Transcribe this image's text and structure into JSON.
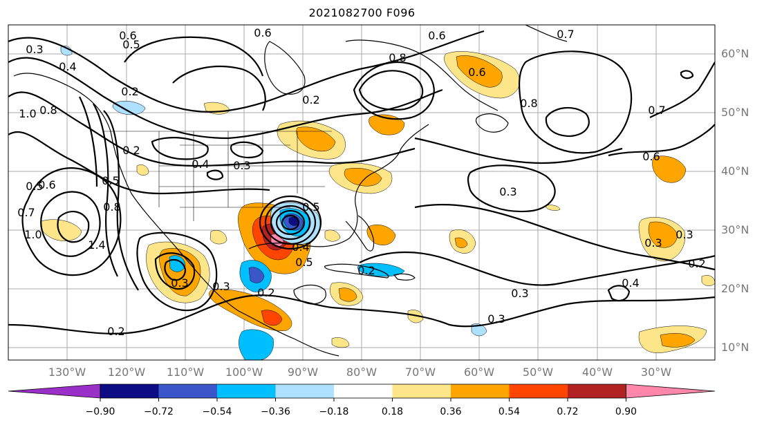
{
  "title": "2021082700 F096",
  "lat_labels": [
    "60°N",
    "50°N",
    "40°N",
    "30°N",
    "20°N",
    "10°N"
  ],
  "lon_labels": [
    "130°W",
    "120°W",
    "110°W",
    "100°W",
    "90°W",
    "80°W",
    "70°W",
    "60°W",
    "50°W",
    "40°W",
    "30°W"
  ],
  "contour_labels": [
    "0.6",
    "0.5",
    "0.3",
    "0.4",
    "0.2",
    "1.0",
    "0.8",
    "0.5",
    "0.6",
    "0.7",
    "1.0",
    "1.4",
    "0.8",
    "0.5",
    "0.2",
    "0.3",
    "0.3",
    "0.2",
    "0.3",
    "0.2",
    "0.4",
    "0.5",
    "0.6",
    "0.8",
    "0.6",
    "0.8",
    "0.7",
    "0.6",
    "0.3",
    "0.3",
    "0.3",
    "0.2",
    "0.4",
    "0.2",
    "0.3",
    "0.3",
    "0.2",
    "0.4",
    "0.5",
    "0.6",
    "0.7"
  ],
  "colorbar": {
    "ticks": [
      "−0.90",
      "−0.72",
      "−0.54",
      "−0.36",
      "−0.18",
      "0.18",
      "0.36",
      "0.54",
      "0.72",
      "0.90"
    ],
    "colors": [
      "#9a30c8",
      "#0c0c85",
      "#3a56c8",
      "#00bfff",
      "#aee0ff",
      "#ffffff",
      "#fde68a",
      "#ffa500",
      "#ff4500",
      "#b22222",
      "#ff88aa"
    ]
  },
  "map_colors": {
    "ocean": "#ffffff",
    "grid": "#aaaaaa",
    "land": "#000000"
  }
}
